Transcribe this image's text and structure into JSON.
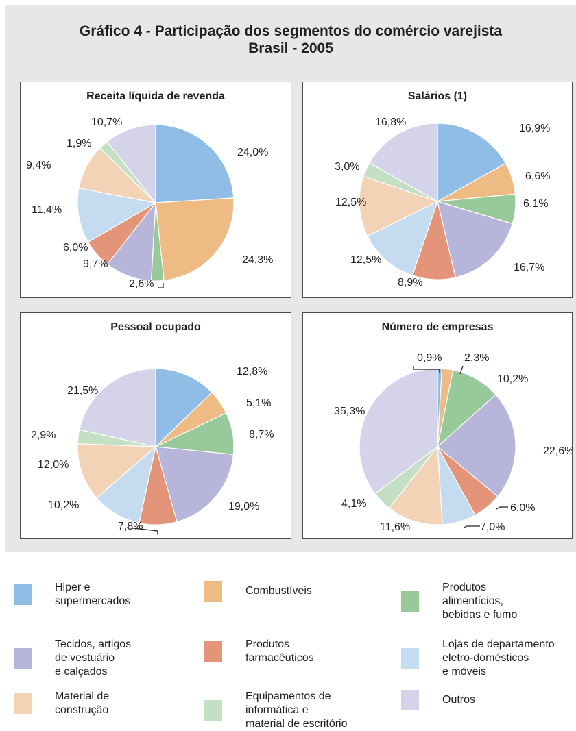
{
  "figure": {
    "title_line1": "Gráfico 4 - Participação dos segmentos do comércio varejista",
    "title_line2": "Brasil - 2005"
  },
  "legend": [
    {
      "label": "Hiper e\nsupermercados",
      "color": "#8fbde6"
    },
    {
      "label": "Combustíveis",
      "color": "#eebb85"
    },
    {
      "label": "Produtos\nalimentícios,\nbebidas e fumo",
      "color": "#98c99a"
    },
    {
      "label": "Tecidos, artigos\nde vestuário\ne calçados",
      "color": "#b8b5db"
    },
    {
      "label": "Produtos\nfarmacêuticos",
      "color": "#e49479"
    },
    {
      "label": "Lojas de departamento\neletro-domésticos\ne móveis",
      "color": "#c5dcf0"
    },
    {
      "label": "Material de\nconstrução",
      "color": "#f2d3b5"
    },
    {
      "label": "Equipamentos de\ninformática e\nmaterial de escritório",
      "color": "#c3e0c4"
    },
    {
      "label": "Outros",
      "color": "#d5d3ea"
    }
  ],
  "chart_data": [
    {
      "type": "pie",
      "title": "Receita líquida de revenda",
      "categories": [
        "Hiper e supermercados",
        "Combustíveis",
        "Produtos alimentícios, bebidas e fumo",
        "Tecidos, artigos de vestuário e calçados",
        "Produtos farmacêuticos",
        "Lojas de departamento eletro-domésticos e móveis",
        "Material de construção",
        "Equipamentos de informática e material de escritório",
        "Outros"
      ],
      "values": [
        24.0,
        24.3,
        2.6,
        9.7,
        6.0,
        11.4,
        9.4,
        1.9,
        10.7
      ],
      "labels": [
        "24,0%",
        "24,3%",
        "2,6%",
        "9,7%",
        "6,0%",
        "11,4%",
        "9,4%",
        "1,9%",
        "10,7%"
      ]
    },
    {
      "type": "pie",
      "title": "Salários (1)",
      "categories": [
        "Hiper e supermercados",
        "Combustíveis",
        "Produtos alimentícios, bebidas e fumo",
        "Tecidos, artigos de vestuário e calçados",
        "Produtos farmacêuticos",
        "Lojas de departamento eletro-domésticos e móveis",
        "Material de construção",
        "Equipamentos de informática e material de escritório",
        "Outros"
      ],
      "values": [
        16.9,
        6.6,
        6.1,
        16.7,
        8.9,
        12.5,
        12.5,
        3.0,
        16.8
      ],
      "labels": [
        "16,9%",
        "6,6%",
        "6,1%",
        "16,7%",
        "8,9%",
        "12,5%",
        "12,5%",
        "3,0%",
        "16,8%"
      ]
    },
    {
      "type": "pie",
      "title": "Pessoal ocupado",
      "categories": [
        "Hiper e supermercados",
        "Combustíveis",
        "Produtos alimentícios, bebidas e fumo",
        "Tecidos, artigos de vestuário e calçados",
        "Produtos farmacêuticos",
        "Lojas de departamento eletro-domésticos e móveis",
        "Material de construção",
        "Equipamentos de informática e material de escritório",
        "Outros"
      ],
      "values": [
        12.8,
        5.1,
        8.7,
        19.0,
        7.8,
        10.2,
        12.0,
        2.9,
        21.5
      ],
      "labels": [
        "12,8%",
        "5,1%",
        "8,7%",
        "19,0%",
        "7,8%",
        "10,2%",
        "12,0%",
        "2,9%",
        "21,5%"
      ]
    },
    {
      "type": "pie",
      "title": "Número de empresas",
      "categories": [
        "Hiper e supermercados",
        "Combustíveis",
        "Produtos alimentícios, bebidas e fumo",
        "Tecidos, artigos de vestuário e calçados",
        "Produtos farmacêuticos",
        "Lojas de departamento eletro-domésticos e móveis",
        "Material de construção",
        "Equipamentos de informática e material de escritório",
        "Outros"
      ],
      "values": [
        0.9,
        2.3,
        10.2,
        22.6,
        6.0,
        7.0,
        11.6,
        4.1,
        35.3
      ],
      "labels": [
        "0,9%",
        "2,3%",
        "10,2%",
        "22,6%",
        "6,0%",
        "7,0%",
        "11,6%",
        "4,1%",
        "35,3%"
      ]
    }
  ]
}
